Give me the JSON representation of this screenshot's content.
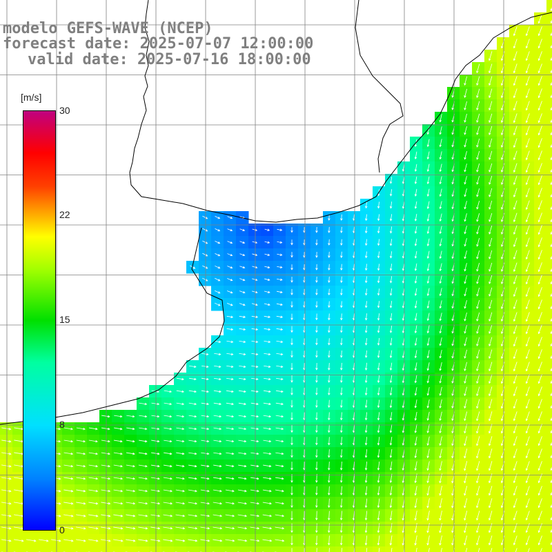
{
  "title": {
    "line1": "modelo GEFS-WAVE (NCEP)",
    "line2": "forecast date: 2025-07-07 12:00:00",
    "line3": "valid date: 2025-07-16 18:00:00"
  },
  "colorbar": {
    "units": "[m/s]",
    "ticks": [
      "30",
      "22",
      "15",
      "8",
      "0"
    ],
    "tick_values": [
      30,
      22,
      15,
      8,
      0
    ],
    "min": 0,
    "max": 30
  },
  "colors": {
    "land": "#ffffff",
    "coastline": "#000000",
    "grid": "#808080",
    "arrows": "#ffffff",
    "title_text": "#808080"
  }
}
